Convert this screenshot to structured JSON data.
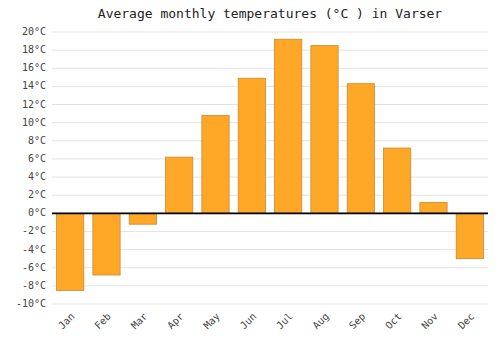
{
  "chart_data": {
    "type": "bar",
    "title": "Average monthly temperatures (°C ) in Varser",
    "categories": [
      "Jan",
      "Feb",
      "Mar",
      "Apr",
      "May",
      "Jun",
      "Jul",
      "Aug",
      "Sep",
      "Oct",
      "Nov",
      "Dec"
    ],
    "values": [
      -8.5,
      -6.8,
      -1.2,
      6.2,
      10.8,
      14.9,
      19.2,
      18.5,
      14.3,
      7.2,
      1.2,
      -5.0
    ],
    "color": "#FFA726",
    "ylim": [
      -10,
      20
    ],
    "yticks": [
      {
        "value": -10,
        "label": "-10°C"
      },
      {
        "value": -8,
        "label": "-8°C"
      },
      {
        "value": -6,
        "label": "-6°C"
      },
      {
        "value": -4,
        "label": "-4°C"
      },
      {
        "value": -2,
        "label": "-2°C"
      },
      {
        "value": 0,
        "label": "0°C"
      },
      {
        "value": 2,
        "label": "2°C"
      },
      {
        "value": 4,
        "label": "4°C"
      },
      {
        "value": 6,
        "label": "6°C"
      },
      {
        "value": 8,
        "label": "8°C"
      },
      {
        "value": 10,
        "label": "10°C"
      },
      {
        "value": 12,
        "label": "12°C"
      },
      {
        "value": 14,
        "label": "14°C"
      },
      {
        "value": 16,
        "label": "16°C"
      },
      {
        "value": 18,
        "label": "18°C"
      },
      {
        "value": 20,
        "label": "20°C"
      }
    ],
    "grid": true
  }
}
